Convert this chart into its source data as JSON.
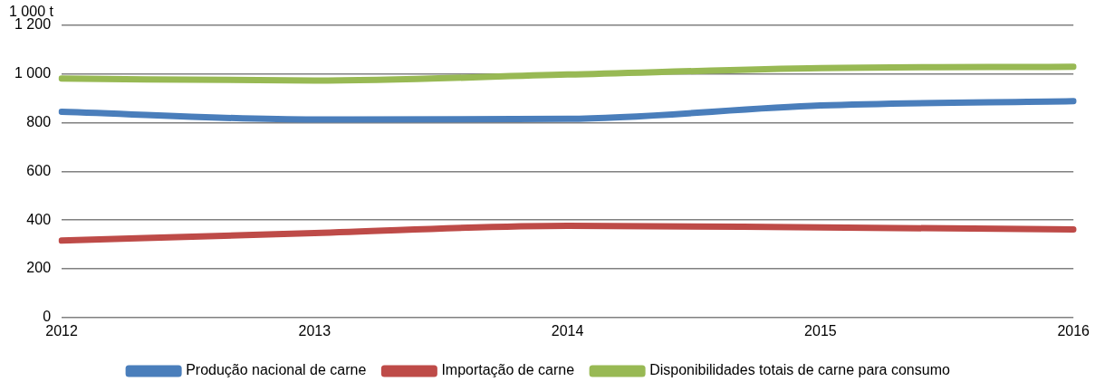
{
  "chart_data": {
    "type": "line",
    "ylabel": "1 000 t",
    "categories": [
      "2012",
      "2013",
      "2014",
      "2015",
      "2016"
    ],
    "series": [
      {
        "name": "Produção nacional de carne",
        "color": "#4a7ebb",
        "values": [
          845,
          813,
          816,
          871,
          889
        ]
      },
      {
        "name": "Importação de carne",
        "color": "#be4b48",
        "values": [
          316,
          347,
          377,
          370,
          362
        ]
      },
      {
        "name": "Disponibilidades totais de carne para consumo",
        "color": "#98b954",
        "values": [
          982,
          973,
          998,
          1024,
          1030
        ]
      }
    ],
    "ylim": [
      0,
      1200
    ],
    "yticks": [
      0,
      200,
      400,
      600,
      800,
      {
        "value": 1000,
        "label": "1 000"
      },
      {
        "value": 1200,
        "label": "1 200"
      }
    ],
    "grid": "y",
    "legend": "bottom",
    "marker": "none",
    "line_style": "solid"
  }
}
